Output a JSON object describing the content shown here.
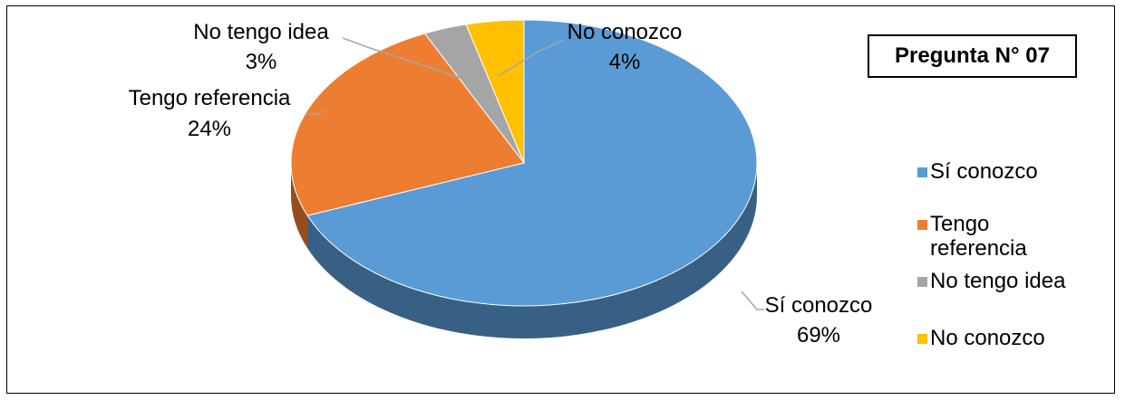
{
  "chart_data": {
    "type": "pie",
    "title": "Pregunta N° 07",
    "legend_position": "right",
    "slices": [
      {
        "name": "Sí conozco",
        "value": 69,
        "label": "69%",
        "color": "#5B9BD5"
      },
      {
        "name": "Tengo referencia",
        "value": 24,
        "label": "24%",
        "color": "#ED7D31"
      },
      {
        "name": "No tengo idea",
        "value": 3,
        "label": "3%",
        "color": "#A5A5A5"
      },
      {
        "name": "No conozco",
        "value": 4,
        "label": "4%",
        "color": "#FFC000"
      }
    ]
  }
}
